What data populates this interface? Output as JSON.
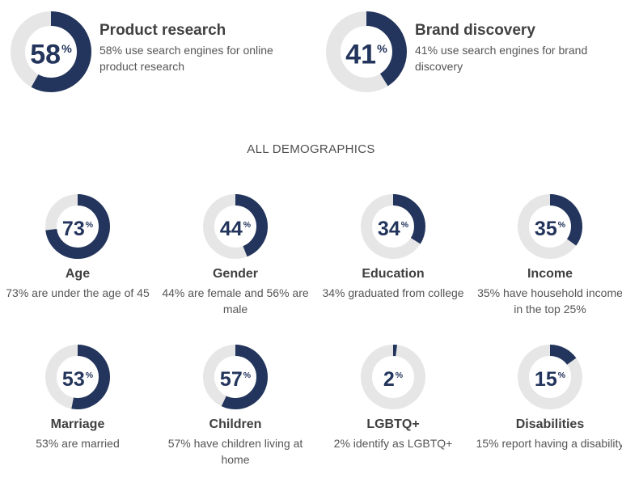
{
  "colors": {
    "accent": "#23355c",
    "track": "#e6e6e6"
  },
  "top": [
    {
      "value": 58,
      "suffix": "%",
      "title": "Product research",
      "desc": "58% use search engines for online product research"
    },
    {
      "value": 41,
      "suffix": "%",
      "title": "Brand discovery",
      "desc": "41% use search engines for brand discovery"
    }
  ],
  "section_title": "ALL DEMOGRAPHICS",
  "demographics": [
    {
      "value": 73,
      "suffix": "%",
      "title": "Age",
      "desc": "73% are under the age of 45"
    },
    {
      "value": 44,
      "suffix": "%",
      "title": "Gender",
      "desc": "44% are female and 56% are male"
    },
    {
      "value": 34,
      "suffix": "%",
      "title": "Education",
      "desc": "34% graduated from college"
    },
    {
      "value": 35,
      "suffix": "%",
      "title": "Income",
      "desc": "35% have household income in the top 25%"
    },
    {
      "value": 53,
      "suffix": "%",
      "title": "Marriage",
      "desc": "53% are married"
    },
    {
      "value": 57,
      "suffix": "%",
      "title": "Children",
      "desc": "57% have children living at home"
    },
    {
      "value": 2,
      "suffix": "%",
      "title": "LGBTQ+",
      "desc": "2% identify as LGBTQ+"
    },
    {
      "value": 15,
      "suffix": "%",
      "title": "Disabilities",
      "desc": "15% report having a disability"
    }
  ],
  "chart_data": {
    "type": "pie",
    "categories": [
      "Product research",
      "Brand discovery",
      "Age",
      "Gender",
      "Education",
      "Income",
      "Marriage",
      "Children",
      "LGBTQ+",
      "Disabilities"
    ],
    "values": [
      58,
      41,
      73,
      44,
      34,
      35,
      53,
      57,
      2,
      15
    ],
    "title": "",
    "xlabel": "",
    "ylabel": ""
  }
}
